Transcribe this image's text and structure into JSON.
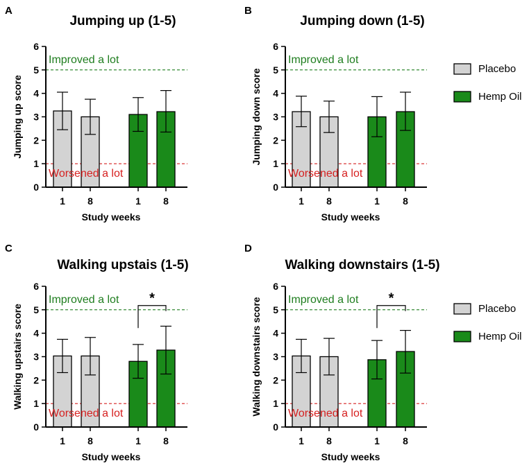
{
  "colors": {
    "placebo": "#d3d3d3",
    "hemp_oil": "#1a8a1a",
    "improved_line": "#1e7d1e",
    "worsened_line": "#d62020",
    "axis": "#000000"
  },
  "legend": [
    {
      "name": "Placebo",
      "color": "#d3d3d3"
    },
    {
      "name": "Hemp Oil",
      "color": "#1a8a1a"
    }
  ],
  "chart_data": [
    {
      "type": "bar",
      "panel": "A",
      "title": "Jumping up (1-5)",
      "xlabel": "Study weeks",
      "ylabel": "Jumping up score",
      "ylim": [
        0,
        6
      ],
      "yticks": [
        "0",
        "1",
        "2",
        "3",
        "4",
        "5",
        "6"
      ],
      "categories": [
        "1",
        "8",
        "1",
        "8"
      ],
      "groups": [
        "Placebo",
        "Placebo",
        "Hemp Oil",
        "Hemp Oil"
      ],
      "values": [
        3.25,
        3.0,
        3.1,
        3.22
      ],
      "error_low": [
        2.45,
        2.25,
        2.38,
        2.35
      ],
      "error_high": [
        4.05,
        3.75,
        3.82,
        4.12
      ],
      "reference_lines": [
        {
          "label": "Improved a lot",
          "value": 5,
          "color": "#1e7d1e"
        },
        {
          "label": "Worsened a lot",
          "value": 1,
          "color": "#d62020"
        }
      ],
      "significance": null
    },
    {
      "type": "bar",
      "panel": "B",
      "title": "Jumping down (1-5)",
      "xlabel": "Study weeks",
      "ylabel": "Jumping down score",
      "ylim": [
        0,
        6
      ],
      "yticks": [
        "0",
        "1",
        "2",
        "3",
        "4",
        "5",
        "6"
      ],
      "categories": [
        "1",
        "8",
        "1",
        "8"
      ],
      "groups": [
        "Placebo",
        "Placebo",
        "Hemp Oil",
        "Hemp Oil"
      ],
      "values": [
        3.22,
        3.0,
        3.0,
        3.22
      ],
      "error_low": [
        2.58,
        2.33,
        2.15,
        2.42
      ],
      "error_high": [
        3.88,
        3.67,
        3.86,
        4.05
      ],
      "reference_lines": [
        {
          "label": "Improved a lot",
          "value": 5,
          "color": "#1e7d1e"
        },
        {
          "label": "Worsened a lot",
          "value": 1,
          "color": "#d62020"
        }
      ],
      "significance": null
    },
    {
      "type": "bar",
      "panel": "C",
      "title": "Walking upstais (1-5)",
      "xlabel": "Study weeks",
      "ylabel": "Walking upstairs score",
      "ylim": [
        0,
        6
      ],
      "yticks": [
        "0",
        "1",
        "2",
        "3",
        "4",
        "5",
        "6"
      ],
      "categories": [
        "1",
        "8",
        "1",
        "8"
      ],
      "groups": [
        "Placebo",
        "Placebo",
        "Hemp Oil",
        "Hemp Oil"
      ],
      "values": [
        3.03,
        3.03,
        2.8,
        3.28
      ],
      "error_low": [
        2.32,
        2.22,
        2.08,
        2.26
      ],
      "error_high": [
        3.74,
        3.82,
        3.52,
        4.3
      ],
      "reference_lines": [
        {
          "label": "Improved a lot",
          "value": 5,
          "color": "#1e7d1e"
        },
        {
          "label": "Worsened a lot",
          "value": 1,
          "color": "#d62020"
        }
      ],
      "significance": {
        "from": 2,
        "to": 3,
        "label": "*",
        "y": 5.18
      }
    },
    {
      "type": "bar",
      "panel": "D",
      "title": "Walking downstairs (1-5)",
      "xlabel": "Study weeks",
      "ylabel": "Walking downstairs score",
      "ylim": [
        0,
        6
      ],
      "yticks": [
        "0",
        "1",
        "2",
        "3",
        "4",
        "5",
        "6"
      ],
      "categories": [
        "1",
        "8",
        "1",
        "8"
      ],
      "groups": [
        "Placebo",
        "Placebo",
        "Hemp Oil",
        "Hemp Oil"
      ],
      "values": [
        3.03,
        3.0,
        2.87,
        3.22
      ],
      "error_low": [
        2.32,
        2.22,
        2.05,
        2.3
      ],
      "error_high": [
        3.74,
        3.78,
        3.69,
        4.12
      ],
      "reference_lines": [
        {
          "label": "Improved a lot",
          "value": 5,
          "color": "#1e7d1e"
        },
        {
          "label": "Worsened a lot",
          "value": 1,
          "color": "#d62020"
        }
      ],
      "significance": {
        "from": 2,
        "to": 3,
        "label": "*",
        "y": 5.18
      }
    }
  ]
}
